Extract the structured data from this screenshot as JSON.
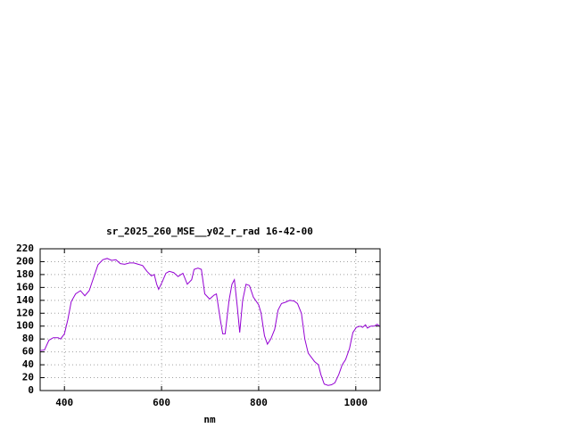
{
  "chart_data": {
    "type": "line",
    "title": "sr_2025_260_MSE__y02_r_rad 16-42-00",
    "x_label": "nm",
    "x": [
      350,
      359,
      368,
      377,
      387,
      392,
      400,
      407,
      414,
      423,
      433,
      442,
      451,
      460,
      469,
      479,
      488,
      497,
      506,
      515,
      524,
      534,
      543,
      552,
      561,
      570,
      579,
      585,
      590,
      594,
      601,
      609,
      616,
      625,
      634,
      644,
      653,
      662,
      667,
      675,
      682,
      689,
      699,
      708,
      713,
      721,
      726,
      731,
      739,
      745,
      750,
      756,
      761,
      767,
      774,
      781,
      789,
      800,
      805,
      812,
      818,
      825,
      833,
      840,
      847,
      855,
      864,
      873,
      880,
      888,
      895,
      902,
      910,
      915,
      923,
      928,
      935,
      943,
      950,
      957,
      965,
      972,
      979,
      987,
      994,
      1001,
      1009,
      1014,
      1020,
      1024,
      1031,
      1038,
      1044,
      1049
    ],
    "series": [
      {
        "name": "sr_2025_260_MSE__y02_r_rad 16-42-00",
        "color": "#9400d3",
        "values": [
          62,
          63,
          78,
          82,
          82,
          80,
          88,
          110,
          138,
          150,
          155,
          147,
          155,
          175,
          195,
          203,
          205,
          202,
          203,
          197,
          196,
          198,
          198,
          196,
          194,
          185,
          178,
          180,
          165,
          157,
          168,
          182,
          185,
          183,
          177,
          182,
          165,
          172,
          188,
          190,
          188,
          150,
          142,
          148,
          150,
          110,
          88,
          88,
          140,
          165,
          172,
          130,
          90,
          140,
          165,
          163,
          145,
          133,
          120,
          85,
          72,
          80,
          95,
          125,
          135,
          137,
          140,
          139,
          135,
          120,
          80,
          58,
          50,
          45,
          40,
          25,
          10,
          8,
          9,
          12,
          25,
          40,
          48,
          65,
          90,
          98,
          100,
          98,
          102,
          97,
          100,
          100,
          103,
          100
        ]
      }
    ],
    "xlim": [
      350,
      1050
    ],
    "xticks": [
      400,
      600,
      800,
      1000
    ],
    "ylim": [
      0,
      220
    ],
    "yticks": [
      0,
      20,
      40,
      60,
      80,
      100,
      120,
      140,
      160,
      180,
      200,
      220
    ],
    "grid": true
  }
}
